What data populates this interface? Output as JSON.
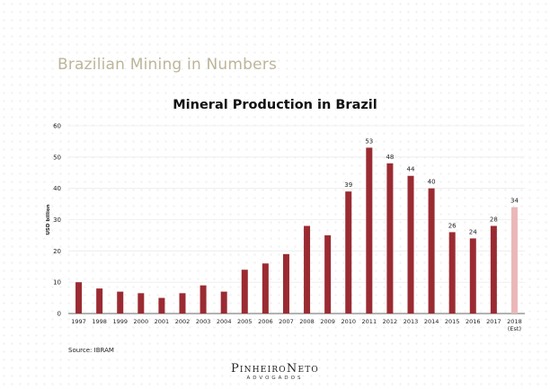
{
  "slide": {
    "title": "Brazilian Mining in Numbers",
    "source": "Source: IBRAM",
    "logo": {
      "main": "PinheiroNeto",
      "sub": "ADVOGADOS"
    }
  },
  "chart_data": {
    "type": "bar",
    "title": "Mineral Production in Brazil",
    "xlabel": "",
    "ylabel": "USD billion",
    "ylim": [
      0,
      60
    ],
    "yticks": [
      0,
      10,
      20,
      30,
      40,
      50,
      60
    ],
    "grid": true,
    "categories": [
      "1997",
      "1998",
      "1999",
      "2000",
      "2001",
      "2002",
      "2003",
      "2004",
      "2005",
      "2006",
      "2007",
      "2008",
      "2009",
      "2010",
      "2011",
      "2012",
      "2013",
      "2014",
      "2015",
      "2016",
      "2017",
      "2018"
    ],
    "category_sublabels": {
      "2018": "(Est)"
    },
    "values": [
      10,
      8,
      7,
      6.5,
      5,
      6.5,
      9,
      7,
      14,
      16,
      19,
      28,
      25,
      39,
      53,
      48,
      44,
      40,
      26,
      24,
      28,
      34
    ],
    "data_labels": {
      "2010": "39",
      "2011": "53",
      "2012": "48",
      "2013": "44",
      "2014": "40",
      "2015": "26",
      "2016": "24",
      "2017": "28",
      "2018": "34"
    },
    "colors": {
      "bar": "#9b2b32",
      "estimate": "#ebb7b8",
      "grid": "#ececec",
      "axis": "#333333"
    }
  }
}
